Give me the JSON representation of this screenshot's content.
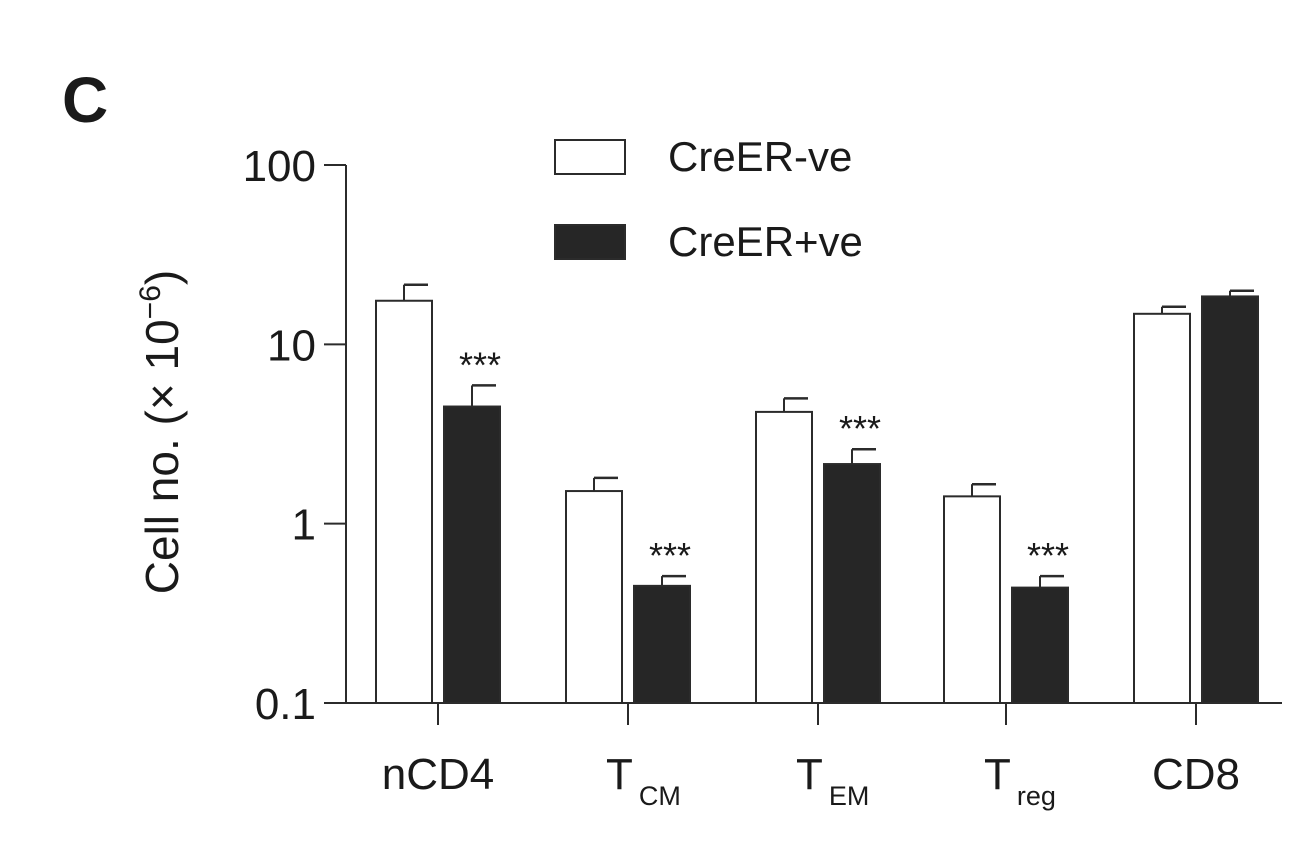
{
  "chart_data": {
    "type": "bar",
    "panel_label": "C",
    "categories": [
      {
        "main": "nCD4",
        "sub": ""
      },
      {
        "main": "T",
        "sub": "CM"
      },
      {
        "main": "T",
        "sub": "EM"
      },
      {
        "main": "T",
        "sub": "reg"
      },
      {
        "main": "CD8",
        "sub": ""
      }
    ],
    "series": [
      {
        "name": "CreER-ve",
        "color": "#ffffff",
        "values": [
          17.5,
          1.52,
          4.2,
          1.42,
          14.8
        ],
        "errors": [
          4.0,
          0.28,
          0.8,
          0.24,
          1.4
        ],
        "significance": [
          "",
          "",
          "",
          "",
          ""
        ]
      },
      {
        "name": "CreER+ve",
        "color": "#262626",
        "values": [
          4.5,
          0.45,
          2.15,
          0.44,
          18.5
        ],
        "errors": [
          1.4,
          0.06,
          0.45,
          0.07,
          1.4
        ],
        "significance": [
          "***",
          "***",
          "***",
          "***",
          ""
        ]
      }
    ],
    "ylabel": {
      "text": "Cell no. (× 10",
      "exp": "−6",
      "close": ")"
    },
    "yscale": "log",
    "ylim": [
      0.1,
      100
    ],
    "yticks": [
      {
        "value": 0.1,
        "label": "0.1"
      },
      {
        "value": 1,
        "label": "1"
      },
      {
        "value": 10,
        "label": "10"
      },
      {
        "value": 100,
        "label": "100"
      }
    ],
    "grid": false,
    "legend_position": "top-center"
  }
}
